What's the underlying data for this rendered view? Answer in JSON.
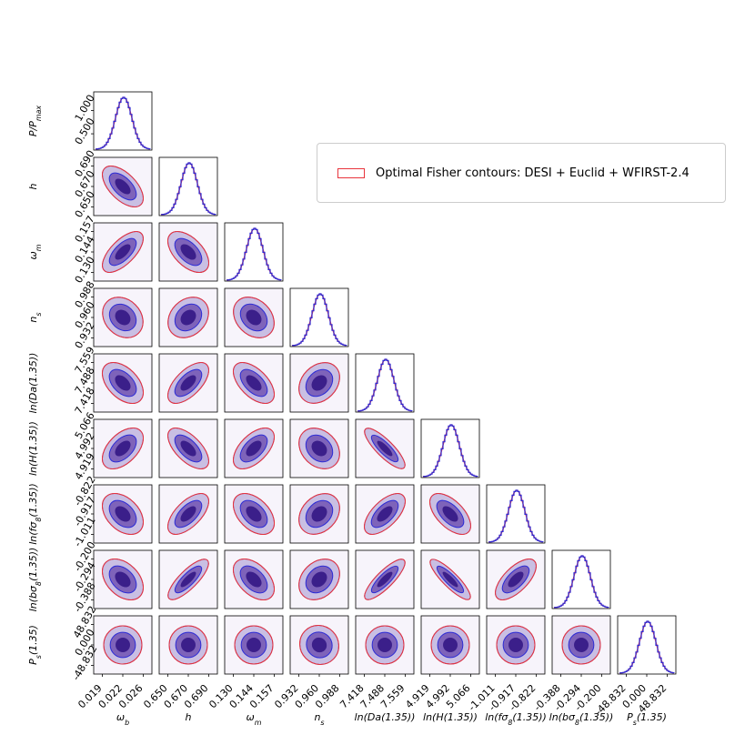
{
  "legend": {
    "label": "Optimal Fisher contours: DESI + Euclid + WFIRST-2.4",
    "swatch_color": "#e8343c"
  },
  "chart_data": {
    "type": "corner",
    "parameters": [
      {
        "id": "omega_b",
        "label": "ω",
        "sub": "b",
        "ticks": [
          "0.019",
          "0.022",
          "0.026"
        ]
      },
      {
        "id": "h",
        "label": "h",
        "sub": "",
        "ticks": [
          "0.650",
          "0.670",
          "0.690"
        ]
      },
      {
        "id": "omega_m",
        "label": "ω",
        "sub": "m",
        "ticks": [
          "0.130",
          "0.144",
          "0.157"
        ]
      },
      {
        "id": "n_s",
        "label": "n",
        "sub": "s",
        "ticks": [
          "0.932",
          "0.960",
          "0.988"
        ]
      },
      {
        "id": "lnDa",
        "label": "ln(Da(1.35))",
        "sub": "",
        "ticks": [
          "7.418",
          "7.488",
          "7.559"
        ]
      },
      {
        "id": "lnH",
        "label": "ln(H(1.35))",
        "sub": "",
        "ticks": [
          "4.919",
          "4.992",
          "5.066"
        ]
      },
      {
        "id": "lnfs8",
        "label": "ln(fσ",
        "sub": "8",
        "suffix": "(1.35))",
        "ticks": [
          "-1.011",
          "-0.917",
          "-0.822"
        ]
      },
      {
        "id": "lnbs8",
        "label": "ln(bσ",
        "sub": "8",
        "suffix": "(1.35))",
        "ticks": [
          "-0.388",
          "-0.294",
          "-0.200"
        ]
      },
      {
        "id": "Ps",
        "label": "P",
        "sub": "s",
        "suffix": "(1.35)",
        "ticks": [
          "-48.832",
          "0.000",
          "48.832"
        ]
      }
    ],
    "first_row_label": {
      "text": "P/P",
      "sub": "max",
      "ticks": [
        "0.500",
        "1.000"
      ]
    },
    "correlations": [
      [
        0,
        1,
        -0.72
      ],
      [
        0,
        2,
        0.78
      ],
      [
        0,
        3,
        -0.35
      ],
      [
        0,
        4,
        -0.62
      ],
      [
        0,
        5,
        0.65
      ],
      [
        0,
        6,
        -0.55
      ],
      [
        0,
        7,
        -0.55
      ],
      [
        0,
        8,
        0.0
      ],
      [
        1,
        2,
        -0.68
      ],
      [
        1,
        3,
        0.38
      ],
      [
        1,
        4,
        0.75
      ],
      [
        1,
        5,
        -0.75
      ],
      [
        1,
        6,
        0.75
      ],
      [
        1,
        7,
        0.88
      ],
      [
        1,
        8,
        0.0
      ],
      [
        2,
        3,
        -0.42
      ],
      [
        2,
        4,
        -0.7
      ],
      [
        2,
        5,
        0.7
      ],
      [
        2,
        6,
        -0.6
      ],
      [
        2,
        7,
        -0.62
      ],
      [
        2,
        8,
        0.0
      ],
      [
        3,
        4,
        0.42
      ],
      [
        3,
        5,
        -0.4
      ],
      [
        3,
        6,
        0.42
      ],
      [
        3,
        7,
        0.42
      ],
      [
        3,
        8,
        -0.1
      ],
      [
        4,
        5,
        -0.9
      ],
      [
        4,
        6,
        0.75
      ],
      [
        4,
        7,
        0.9
      ],
      [
        4,
        8,
        0.0
      ],
      [
        5,
        6,
        -0.72
      ],
      [
        5,
        7,
        -0.92
      ],
      [
        5,
        8,
        0.0
      ],
      [
        6,
        7,
        0.78
      ],
      [
        6,
        8,
        0.0
      ],
      [
        7,
        8,
        0.0
      ]
    ],
    "series": [
      {
        "name": "Optimal Fisher contours: DESI + Euclid + WFIRST-2.4",
        "color": "#e8343c"
      },
      {
        "color": "#2b2bd6"
      }
    ],
    "fill_colors": [
      "#f7f4fb",
      "#c9bfe3",
      "#7e63ba",
      "#3b1f8a"
    ]
  }
}
